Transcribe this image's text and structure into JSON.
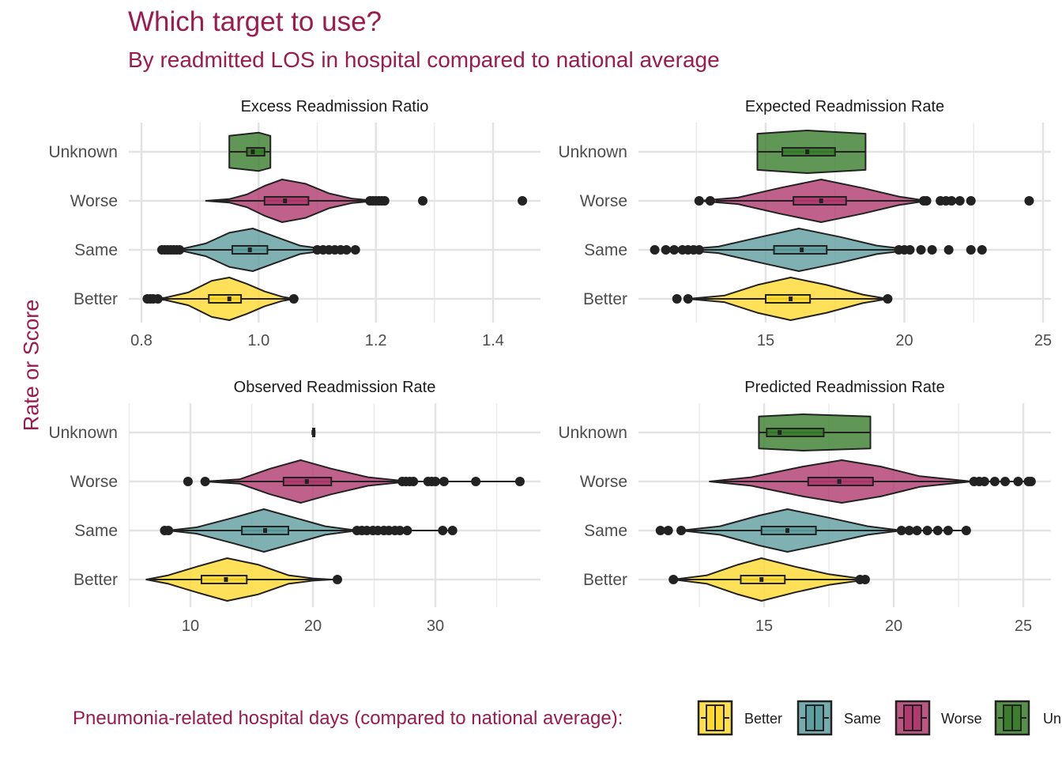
{
  "title": "Which target to use?",
  "subtitle": "By readmitted LOS in hospital compared to national average",
  "y_axis_label": "Rate or Score",
  "legend": {
    "title": "Pneumonia-related hospital days (compared to national average):",
    "items": [
      {
        "label": "Better",
        "color": "#FFD92F"
      },
      {
        "label": "Same",
        "color": "#5F9EA0"
      },
      {
        "label": "Worse",
        "color": "#B03A6E"
      },
      {
        "label": "Un",
        "color": "#3A7D2C"
      }
    ]
  },
  "chart_data": [
    {
      "type": "violin",
      "title": "Excess Readmission Ratio",
      "categories": [
        "Better",
        "Same",
        "Worse",
        "Unknown"
      ],
      "xlim": [
        0.8,
        1.45
      ],
      "xticks": [
        0.8,
        1.0,
        1.2,
        1.4
      ],
      "xtick_labels": [
        "0.8",
        "1.0",
        "1.2",
        "1.4"
      ],
      "grid": true,
      "series": [
        {
          "group": "Unknown",
          "color": "#3A7D2C",
          "violin_range": [
            0.95,
            1.02
          ],
          "q1": 0.98,
          "median": 0.99,
          "q3": 1.01,
          "whisker": [
            0.95,
            1.02
          ],
          "outliers": [],
          "density": [
            [
              0.95,
              0.75
            ],
            [
              1.0,
              0.9
            ],
            [
              1.02,
              0.75
            ]
          ]
        },
        {
          "group": "Worse",
          "color": "#B03A6E",
          "violin_range": [
            0.91,
            1.2
          ],
          "q1": 1.01,
          "median": 1.045,
          "q3": 1.085,
          "whisker": [
            0.91,
            1.19
          ],
          "outliers": [
            1.19,
            1.195,
            1.2,
            1.205,
            1.21,
            1.215,
            1.28,
            1.45
          ],
          "density": [
            [
              0.91,
              0.0
            ],
            [
              0.95,
              0.08
            ],
            [
              0.98,
              0.3
            ],
            [
              1.01,
              0.7
            ],
            [
              1.04,
              1.0
            ],
            [
              1.08,
              0.8
            ],
            [
              1.12,
              0.35
            ],
            [
              1.16,
              0.1
            ],
            [
              1.2,
              0.0
            ]
          ]
        },
        {
          "group": "Same",
          "color": "#5F9EA0",
          "violin_range": [
            0.84,
            1.16
          ],
          "q1": 0.955,
          "median": 0.985,
          "q3": 1.015,
          "whisker": [
            0.87,
            1.1
          ],
          "outliers": [
            0.835,
            0.84,
            0.845,
            0.85,
            0.855,
            0.86,
            0.865,
            1.1,
            1.11,
            1.12,
            1.13,
            1.14,
            1.15,
            1.165
          ],
          "density": [
            [
              0.84,
              0.0
            ],
            [
              0.87,
              0.05
            ],
            [
              0.91,
              0.3
            ],
            [
              0.95,
              0.8
            ],
            [
              0.99,
              1.0
            ],
            [
              1.03,
              0.6
            ],
            [
              1.07,
              0.2
            ],
            [
              1.11,
              0.05
            ],
            [
              1.16,
              0.0
            ]
          ]
        },
        {
          "group": "Better",
          "color": "#FFD92F",
          "violin_range": [
            0.81,
            1.06
          ],
          "q1": 0.915,
          "median": 0.95,
          "q3": 0.97,
          "whisker": [
            0.83,
            1.06
          ],
          "outliers": [
            0.81,
            0.815,
            0.82,
            0.828,
            1.06
          ],
          "density": [
            [
              0.81,
              0.0
            ],
            [
              0.84,
              0.05
            ],
            [
              0.88,
              0.3
            ],
            [
              0.92,
              0.85
            ],
            [
              0.95,
              1.0
            ],
            [
              0.98,
              0.7
            ],
            [
              1.01,
              0.35
            ],
            [
              1.04,
              0.1
            ],
            [
              1.06,
              0.0
            ]
          ]
        }
      ]
    },
    {
      "type": "violin",
      "title": "Expected Readmission Rate",
      "categories": [
        "Better",
        "Same",
        "Worse",
        "Unknown"
      ],
      "xlim": [
        11.0,
        25.0
      ],
      "xticks": [
        15,
        20,
        25
      ],
      "xtick_labels": [
        "15",
        "20",
        "25"
      ],
      "grid": true,
      "series": [
        {
          "group": "Unknown",
          "color": "#3A7D2C",
          "violin_range": [
            14.7,
            18.6
          ],
          "q1": 15.6,
          "median": 16.5,
          "q3": 17.5,
          "whisker": [
            14.7,
            18.6
          ],
          "outliers": [],
          "density": [
            [
              14.7,
              0.85
            ],
            [
              16.5,
              1.0
            ],
            [
              18.6,
              0.85
            ]
          ]
        },
        {
          "group": "Worse",
          "color": "#B03A6E",
          "violin_range": [
            12.6,
            24.5
          ],
          "q1": 16.0,
          "median": 17.0,
          "q3": 17.9,
          "whisker": [
            13.2,
            20.7
          ],
          "outliers": [
            12.6,
            13.0,
            20.7,
            20.8,
            21.3,
            21.5,
            21.7,
            22.0,
            22.4,
            24.5
          ],
          "density": [
            [
              12.6,
              0.0
            ],
            [
              14.0,
              0.15
            ],
            [
              15.5,
              0.6
            ],
            [
              17.0,
              1.0
            ],
            [
              18.5,
              0.6
            ],
            [
              19.8,
              0.2
            ],
            [
              20.8,
              0.0
            ]
          ]
        },
        {
          "group": "Same",
          "color": "#5F9EA0",
          "violin_range": [
            11.0,
            22.8
          ],
          "q1": 15.3,
          "median": 16.3,
          "q3": 17.2,
          "whisker": [
            12.5,
            19.7
          ],
          "outliers": [
            11.0,
            11.4,
            11.7,
            12.0,
            12.2,
            12.4,
            12.6,
            19.8,
            20.0,
            20.2,
            20.6,
            21.0,
            21.6,
            22.4,
            22.8
          ],
          "density": [
            [
              11.8,
              0.0
            ],
            [
              13.3,
              0.15
            ],
            [
              14.8,
              0.6
            ],
            [
              16.2,
              1.0
            ],
            [
              17.7,
              0.6
            ],
            [
              19.0,
              0.2
            ],
            [
              20.3,
              0.0
            ]
          ]
        },
        {
          "group": "Better",
          "color": "#FFD92F",
          "violin_range": [
            12.2,
            19.4
          ],
          "q1": 15.0,
          "median": 15.9,
          "q3": 16.6,
          "whisker": [
            12.2,
            19.4
          ],
          "outliers": [
            11.8,
            12.2,
            19.4
          ],
          "density": [
            [
              12.2,
              0.0
            ],
            [
              13.5,
              0.15
            ],
            [
              14.7,
              0.65
            ],
            [
              15.9,
              1.0
            ],
            [
              17.2,
              0.65
            ],
            [
              18.5,
              0.2
            ],
            [
              19.4,
              0.0
            ]
          ]
        }
      ]
    },
    {
      "type": "violin",
      "title": "Observed Readmission Rate",
      "categories": [
        "Better",
        "Same",
        "Worse",
        "Unknown"
      ],
      "xlim": [
        5.0,
        37.0
      ],
      "xticks": [
        10,
        20,
        30
      ],
      "xtick_labels": [
        "10",
        "20",
        "30"
      ],
      "grid": true,
      "series": [
        {
          "group": "Unknown",
          "color": "#3A7D2C",
          "violin_range": [
            20.0,
            20.1
          ],
          "q1": 20.0,
          "median": 20.05,
          "q3": 20.1,
          "whisker": [
            20.0,
            20.1
          ],
          "outliers": [],
          "density": []
        },
        {
          "group": "Worse",
          "color": "#B03A6E",
          "violin_range": [
            9.8,
            27.8
          ],
          "q1": 17.6,
          "median": 19.5,
          "q3": 21.5,
          "whisker": [
            11.2,
            36.9
          ],
          "outliers": [
            9.8,
            11.2,
            27.3,
            27.6,
            27.9,
            28.2,
            29.4,
            29.7,
            30.0,
            30.7,
            33.3,
            36.9
          ],
          "density": [
            [
              11.2,
              0.0
            ],
            [
              14.0,
              0.1
            ],
            [
              16.5,
              0.6
            ],
            [
              19.0,
              1.0
            ],
            [
              21.5,
              0.6
            ],
            [
              24.5,
              0.2
            ],
            [
              27.8,
              0.0
            ]
          ]
        },
        {
          "group": "Same",
          "color": "#5F9EA0",
          "violin_range": [
            8.2,
            23.6
          ],
          "q1": 14.2,
          "median": 16.1,
          "q3": 18.0,
          "whisker": [
            8.2,
            31.4
          ],
          "outliers": [
            7.9,
            8.2,
            23.6,
            24.0,
            24.4,
            24.9,
            25.3,
            25.8,
            26.2,
            26.7,
            27.1,
            27.7,
            30.6,
            31.4
          ],
          "density": [
            [
              8.2,
              0.0
            ],
            [
              10.5,
              0.15
            ],
            [
              13.5,
              0.6
            ],
            [
              16.0,
              1.0
            ],
            [
              18.5,
              0.6
            ],
            [
              21.0,
              0.2
            ],
            [
              23.6,
              0.0
            ]
          ]
        },
        {
          "group": "Better",
          "color": "#FFD92F",
          "violin_range": [
            6.4,
            21.5
          ],
          "q1": 10.9,
          "median": 12.9,
          "q3": 14.6,
          "whisker": [
            6.4,
            21.8
          ],
          "outliers": [
            22.0
          ],
          "density": [
            [
              6.4,
              0.0
            ],
            [
              8.2,
              0.2
            ],
            [
              10.5,
              0.6
            ],
            [
              13.0,
              1.0
            ],
            [
              15.5,
              0.7
            ],
            [
              18.0,
              0.2
            ],
            [
              20.0,
              0.05
            ],
            [
              21.5,
              0.0
            ]
          ]
        }
      ]
    },
    {
      "type": "violin",
      "title": "Predicted Readmission Rate",
      "categories": [
        "Better",
        "Same",
        "Worse",
        "Unknown"
      ],
      "xlim": [
        11.0,
        25.0
      ],
      "xticks": [
        15,
        20,
        25
      ],
      "xtick_labels": [
        "15",
        "20",
        "25"
      ],
      "grid": true,
      "series": [
        {
          "group": "Unknown",
          "color": "#3A7D2C",
          "violin_range": [
            14.8,
            19.1
          ],
          "q1": 15.1,
          "median": 15.6,
          "q3": 17.3,
          "whisker": [
            14.8,
            19.1
          ],
          "outliers": [],
          "density": [
            [
              14.8,
              0.75
            ],
            [
              16.5,
              0.85
            ],
            [
              19.1,
              0.75
            ]
          ]
        },
        {
          "group": "Worse",
          "color": "#B03A6E",
          "violin_range": [
            12.9,
            23.0
          ],
          "q1": 16.7,
          "median": 17.9,
          "q3": 19.2,
          "whisker": [
            12.9,
            25.3
          ],
          "outliers": [
            23.1,
            23.3,
            23.5,
            23.9,
            24.3,
            24.8,
            25.2,
            25.3
          ],
          "density": [
            [
              12.9,
              0.0
            ],
            [
              14.5,
              0.2
            ],
            [
              16.5,
              0.7
            ],
            [
              18.0,
              1.0
            ],
            [
              19.5,
              0.7
            ],
            [
              21.0,
              0.25
            ],
            [
              23.0,
              0.0
            ]
          ]
        },
        {
          "group": "Same",
          "color": "#5F9EA0",
          "violin_range": [
            11.0,
            22.8
          ],
          "q1": 14.9,
          "median": 15.9,
          "q3": 17.0,
          "whisker": [
            11.8,
            22.8
          ],
          "outliers": [
            11.0,
            11.3,
            11.8,
            20.3,
            20.6,
            20.9,
            21.3,
            21.7,
            22.1,
            22.8
          ],
          "density": [
            [
              11.8,
              0.0
            ],
            [
              13.3,
              0.2
            ],
            [
              14.8,
              0.7
            ],
            [
              15.9,
              1.0
            ],
            [
              17.5,
              0.6
            ],
            [
              19.0,
              0.2
            ],
            [
              20.3,
              0.0
            ]
          ]
        },
        {
          "group": "Better",
          "color": "#FFD92F",
          "violin_range": [
            11.5,
            19.0
          ],
          "q1": 14.1,
          "median": 14.9,
          "q3": 15.8,
          "whisker": [
            11.5,
            19.0
          ],
          "outliers": [
            11.5,
            18.7,
            18.9
          ],
          "density": [
            [
              11.5,
              0.0
            ],
            [
              12.8,
              0.2
            ],
            [
              14.0,
              0.7
            ],
            [
              14.9,
              1.0
            ],
            [
              16.2,
              0.6
            ],
            [
              17.5,
              0.25
            ],
            [
              19.0,
              0.0
            ]
          ]
        }
      ]
    }
  ]
}
